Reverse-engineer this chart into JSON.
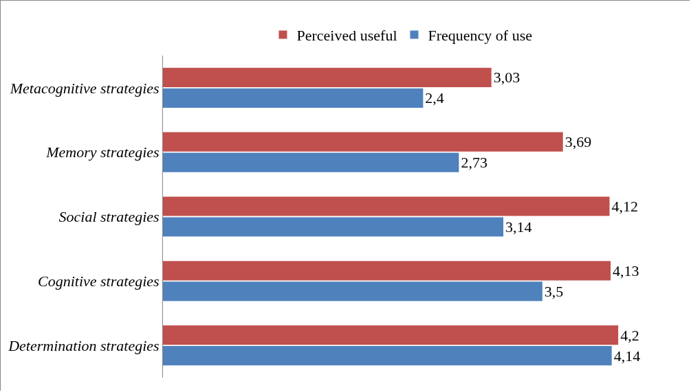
{
  "chart_data": {
    "type": "bar",
    "orientation": "horizontal",
    "legend": "top",
    "categories": [
      "Metacognitive strategies",
      "Memory strategies",
      "Social strategies",
      "Cognitive strategies",
      "Determination strategies"
    ],
    "series": [
      {
        "name": "Perceived useful",
        "color": "#c0504d",
        "values": [
          3.03,
          3.69,
          4.12,
          4.13,
          4.2
        ],
        "value_labels": [
          "3,03",
          "3,69",
          "4,12",
          "4,13",
          "4,2"
        ]
      },
      {
        "name": "Frequency of use",
        "color": "#4f81bd",
        "values": [
          2.4,
          2.73,
          3.14,
          3.5,
          4.14
        ],
        "value_labels": [
          "2,4",
          "2,73",
          "3,14",
          "3,5",
          "4,14"
        ]
      }
    ]
  }
}
